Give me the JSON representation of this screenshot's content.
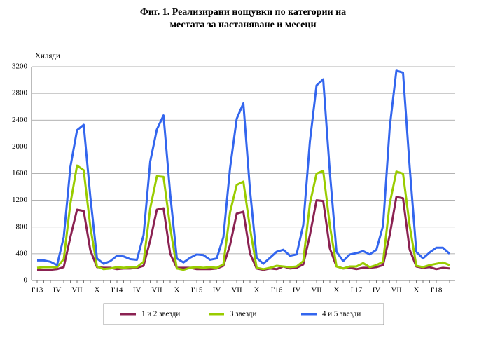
{
  "chart_data": {
    "type": "line",
    "title": [
      "Фиг. 1. Реализирани нощувки по категории на",
      "местата за настаняване и месеци"
    ],
    "y_label": "Хиляди",
    "categories": [
      "I'13",
      null,
      null,
      "IV",
      null,
      null,
      "VII",
      null,
      null,
      "X",
      null,
      null,
      "I'14",
      null,
      null,
      "IV",
      null,
      null,
      "VII",
      null,
      null,
      "X",
      null,
      null,
      "I'15",
      null,
      null,
      "IV",
      null,
      null,
      "VII",
      null,
      null,
      "X",
      null,
      null,
      "I'16",
      null,
      null,
      "IV",
      null,
      null,
      "VII",
      null,
      null,
      "X",
      null,
      null,
      "I'17",
      null,
      null,
      "IV",
      null,
      null,
      "VII",
      null,
      null,
      "X",
      null,
      null,
      "I'18",
      null,
      null
    ],
    "series": [
      {
        "name": "1 и 2 звезди",
        "color": "#8b2252",
        "values": [
          160,
          160,
          160,
          170,
          200,
          650,
          1060,
          1040,
          450,
          200,
          190,
          190,
          170,
          180,
          180,
          190,
          220,
          600,
          1060,
          1080,
          400,
          190,
          190,
          190,
          170,
          170,
          170,
          180,
          220,
          530,
          1000,
          1030,
          400,
          180,
          160,
          180,
          170,
          210,
          180,
          190,
          240,
          680,
          1200,
          1190,
          480,
          210,
          180,
          190,
          170,
          190,
          190,
          200,
          230,
          680,
          1250,
          1230,
          460,
          210,
          190,
          200,
          170,
          190,
          180
        ]
      },
      {
        "name": "3 звезди",
        "color": "#99cc00",
        "values": [
          190,
          200,
          200,
          200,
          320,
          1150,
          1720,
          1650,
          800,
          210,
          170,
          180,
          200,
          190,
          200,
          200,
          280,
          1080,
          1560,
          1550,
          800,
          180,
          160,
          190,
          200,
          190,
          200,
          190,
          240,
          1020,
          1430,
          1480,
          780,
          190,
          170,
          190,
          220,
          210,
          200,
          210,
          290,
          1150,
          1600,
          1640,
          820,
          210,
          180,
          210,
          210,
          260,
          200,
          230,
          280,
          1150,
          1630,
          1600,
          820,
          220,
          200,
          230,
          250,
          270,
          230
        ]
      },
      {
        "name": "4 и 5 звезди",
        "color": "#3366ee",
        "values": [
          300,
          300,
          280,
          230,
          650,
          1700,
          2250,
          2330,
          1250,
          330,
          250,
          290,
          370,
          360,
          320,
          310,
          680,
          1780,
          2260,
          2470,
          1300,
          330,
          270,
          340,
          390,
          380,
          310,
          330,
          650,
          1680,
          2420,
          2650,
          1350,
          340,
          250,
          340,
          430,
          460,
          370,
          390,
          830,
          2080,
          2920,
          3010,
          1620,
          430,
          290,
          390,
          410,
          440,
          390,
          460,
          820,
          2290,
          3140,
          3110,
          1700,
          430,
          330,
          420,
          490,
          490,
          400
        ]
      }
    ],
    "ylim": [
      0,
      3200
    ],
    "yticks": [
      0,
      400,
      800,
      1200,
      1600,
      2000,
      2400,
      2800,
      3200
    ],
    "grid": true
  }
}
